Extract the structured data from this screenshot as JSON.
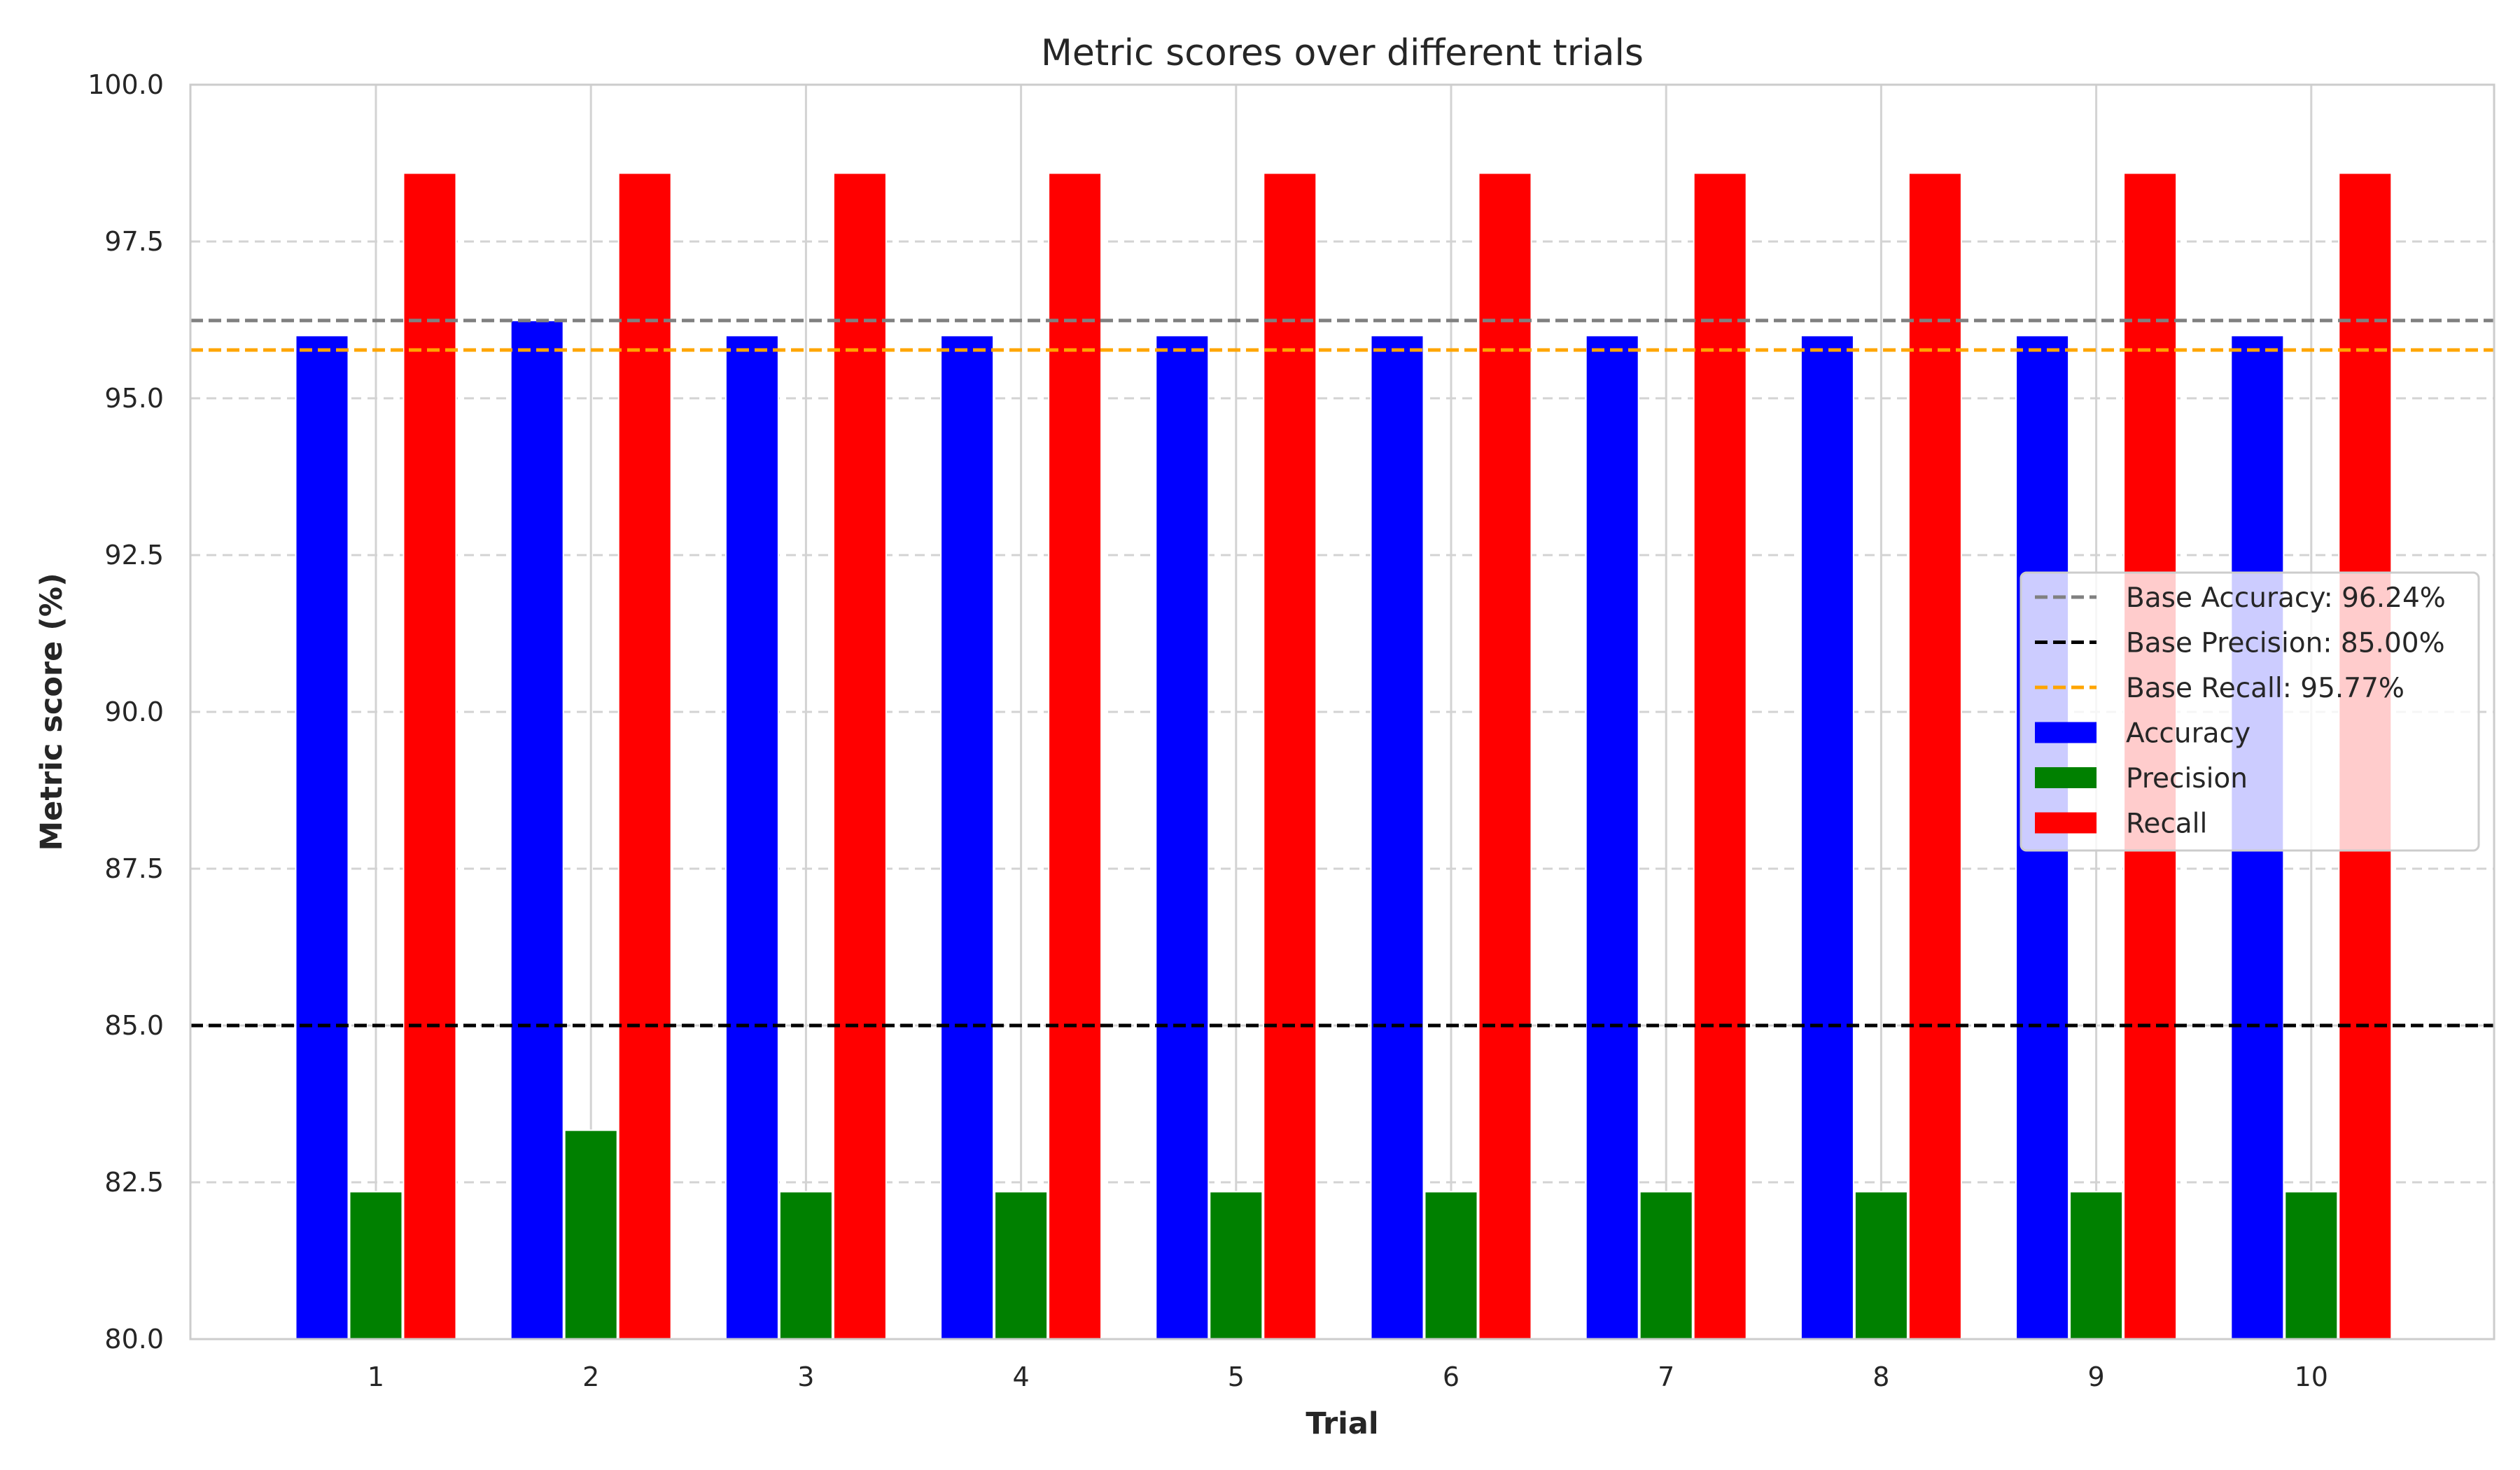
{
  "chart_data": {
    "type": "bar",
    "title": "Metric scores over different trials",
    "xlabel": "Trial",
    "ylabel": "Metric score (%)",
    "ylim": [
      80.0,
      100.0
    ],
    "yticks": [
      "80.0",
      "82.5",
      "85.0",
      "87.5",
      "90.0",
      "92.5",
      "95.0",
      "97.5",
      "100.0"
    ],
    "categories": [
      "1",
      "2",
      "3",
      "4",
      "5",
      "6",
      "7",
      "8",
      "9",
      "10"
    ],
    "series": [
      {
        "name": "Accuracy",
        "color": "#0000ff",
        "values": [
          96.0,
          96.24,
          96.0,
          96.0,
          96.0,
          96.0,
          96.0,
          96.0,
          96.0,
          96.0
        ]
      },
      {
        "name": "Precision",
        "color": "#008000",
        "values": [
          82.35,
          83.33,
          82.35,
          82.35,
          82.35,
          82.35,
          82.35,
          82.35,
          82.35,
          82.35
        ]
      },
      {
        "name": "Recall",
        "color": "#ff0000",
        "values": [
          98.59,
          98.59,
          98.59,
          98.59,
          98.59,
          98.59,
          98.59,
          98.59,
          98.59,
          98.59
        ]
      }
    ],
    "reference_lines": [
      {
        "name": "Base Accuracy: 96.24%",
        "value": 96.24,
        "color": "#808080",
        "style": "dashed"
      },
      {
        "name": "Base Precision: 85.00%",
        "value": 85.0,
        "color": "#000000",
        "style": "dashed"
      },
      {
        "name": "Base Recall: 95.77%",
        "value": 95.77,
        "color": "#ffa500",
        "style": "dashed"
      }
    ],
    "grid": true,
    "legend_position": "center-right"
  }
}
